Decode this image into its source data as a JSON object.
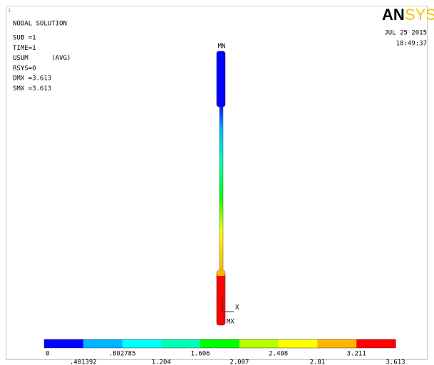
{
  "window_number": "1",
  "header": {
    "title": "NODAL SOLUTION",
    "lines": [
      "SUB =1",
      "TIME=1",
      "USUM      (AVG)",
      "RSYS=0",
      "DMX =3.613",
      "SMX =3.613"
    ]
  },
  "logo": {
    "left": "AN",
    "right": "SYS"
  },
  "timestamp": {
    "date": "JUL 25 2015",
    "time": "18:49:37"
  },
  "model": {
    "min_label": "MN",
    "max_label": "MX",
    "axis_label": "X"
  },
  "legend": {
    "colors": [
      "#0000ff",
      "#00b4ff",
      "#00ffff",
      "#00ffb4",
      "#00ff00",
      "#b4ff00",
      "#ffff00",
      "#ffb400",
      "#ff0000"
    ],
    "labels": [
      "0",
      ".401392",
      ".802785",
      "1.204",
      "1.606",
      "2.007",
      "2.408",
      "2.81",
      "3.211",
      "3.613"
    ]
  }
}
